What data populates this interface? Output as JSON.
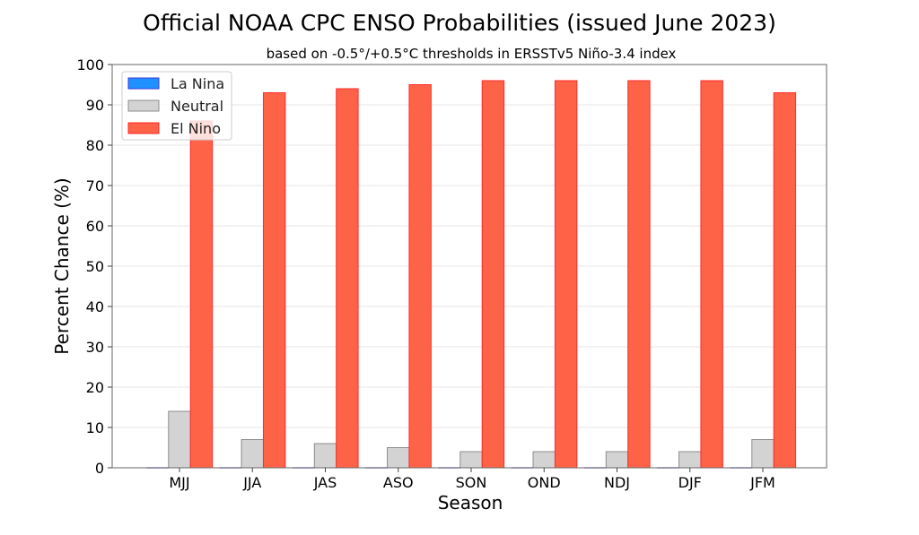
{
  "chart_data": {
    "type": "bar",
    "title": "Official NOAA CPC ENSO Probabilities (issued June 2023)",
    "subtitle": "based on -0.5°/+0.5°C thresholds in ERSSTv5 Niño-3.4 index",
    "xlabel": "Season",
    "ylabel": "Percent Chance (%)",
    "ylim": [
      0,
      100
    ],
    "yticks": [
      0,
      10,
      20,
      30,
      40,
      50,
      60,
      70,
      80,
      90,
      100
    ],
    "grid": "horizontal",
    "legend": "top-left",
    "categories": [
      "MJJ",
      "JJA",
      "JAS",
      "ASO",
      "SON",
      "OND",
      "NDJ",
      "DJF",
      "JFM"
    ],
    "series": [
      {
        "name": "La Nina",
        "color": "#1e90ff",
        "edge": "#3b3bd6",
        "values": [
          0,
          0,
          0,
          0,
          0,
          0,
          0,
          0,
          0
        ]
      },
      {
        "name": "Neutral",
        "color": "#d3d3d3",
        "edge": "#8c8c8c",
        "values": [
          14,
          7,
          6,
          5,
          4,
          4,
          4,
          4,
          7
        ]
      },
      {
        "name": "El Nino",
        "color": "#ff6347",
        "edge": "#ff2a2a",
        "values": [
          86,
          93,
          94,
          95,
          96,
          96,
          96,
          96,
          93
        ]
      }
    ]
  }
}
